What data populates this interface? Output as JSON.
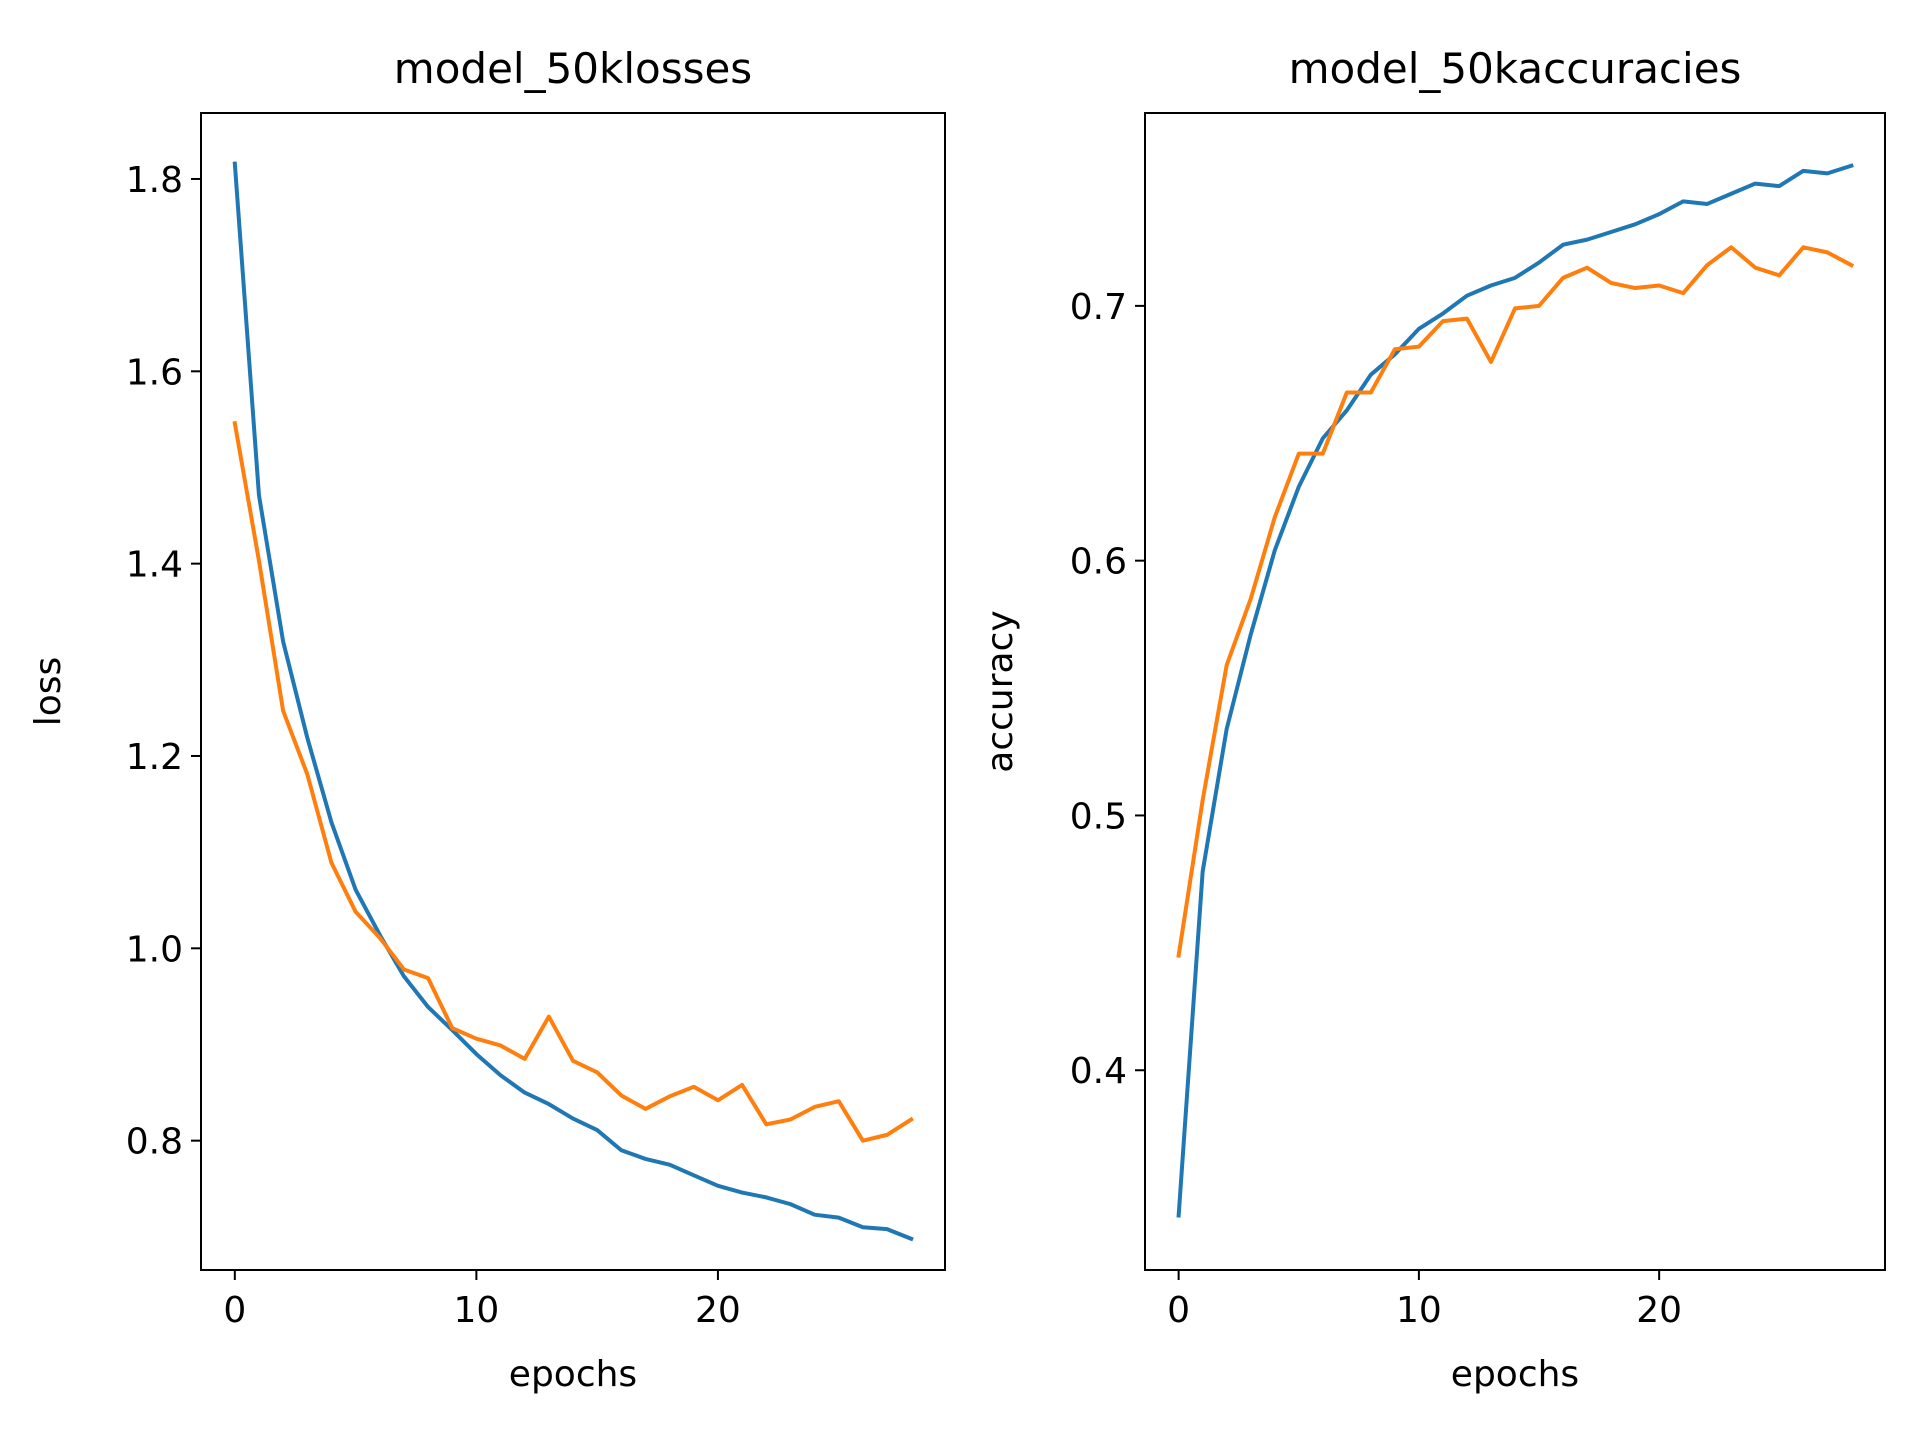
{
  "chart_data": [
    {
      "type": "line",
      "title": "model_50klosses",
      "xlabel": "epochs",
      "ylabel": "loss",
      "xlim": [
        -1.4,
        29.4
      ],
      "ylim": [
        0.6655,
        1.8686
      ],
      "xticks": [
        0,
        10,
        20
      ],
      "xtick_labels": [
        "0",
        "10",
        "20"
      ],
      "yticks": [
        0.8,
        1.0,
        1.2,
        1.4,
        1.6,
        1.8
      ],
      "ytick_labels": [
        "0.8",
        "1.0",
        "1.2",
        "1.4",
        "1.6",
        "1.8"
      ],
      "grid": false,
      "legend": null,
      "x": [
        0,
        1,
        2,
        3,
        4,
        5,
        6,
        7,
        8,
        9,
        10,
        11,
        12,
        13,
        14,
        15,
        16,
        17,
        18,
        19,
        20,
        21,
        22,
        23,
        24,
        25,
        26,
        27,
        28
      ],
      "series": [
        {
          "color": "#1f77b4",
          "values": [
            1.816,
            1.471,
            1.319,
            1.219,
            1.131,
            1.061,
            1.014,
            0.971,
            0.939,
            0.915,
            0.89,
            0.868,
            0.85,
            0.838,
            0.823,
            0.811,
            0.79,
            0.781,
            0.775,
            0.764,
            0.753,
            0.746,
            0.741,
            0.734,
            0.723,
            0.72,
            0.71,
            0.708,
            0.698
          ]
        },
        {
          "color": "#ff7f0e",
          "values": [
            1.546,
            1.403,
            1.247,
            1.181,
            1.089,
            1.038,
            1.011,
            0.978,
            0.969,
            0.917,
            0.906,
            0.899,
            0.885,
            0.929,
            0.883,
            0.871,
            0.847,
            0.833,
            0.846,
            0.856,
            0.842,
            0.858,
            0.817,
            0.822,
            0.835,
            0.841,
            0.8,
            0.806,
            0.822
          ]
        }
      ]
    },
    {
      "type": "line",
      "title": "model_50kaccuracies",
      "xlabel": "epochs",
      "ylabel": "accuracy",
      "xlim": [
        -1.4,
        29.4
      ],
      "ylim": [
        0.3216,
        0.7757
      ],
      "xticks": [
        0,
        10,
        20
      ],
      "xtick_labels": [
        "0",
        "10",
        "20"
      ],
      "yticks": [
        0.4,
        0.5,
        0.6,
        0.7
      ],
      "ytick_labels": [
        "0.4",
        "0.5",
        "0.6",
        "0.7"
      ],
      "grid": false,
      "legend": null,
      "x": [
        0,
        1,
        2,
        3,
        4,
        5,
        6,
        7,
        8,
        9,
        10,
        11,
        12,
        13,
        14,
        15,
        16,
        17,
        18,
        19,
        20,
        21,
        22,
        23,
        24,
        25,
        26,
        27,
        28
      ],
      "series": [
        {
          "color": "#1f77b4",
          "values": [
            0.343,
            0.478,
            0.534,
            0.571,
            0.604,
            0.629,
            0.648,
            0.659,
            0.673,
            0.681,
            0.691,
            0.697,
            0.704,
            0.708,
            0.711,
            0.717,
            0.724,
            0.726,
            0.729,
            0.732,
            0.736,
            0.741,
            0.74,
            0.744,
            0.748,
            0.747,
            0.753,
            0.752,
            0.755
          ]
        },
        {
          "color": "#ff7f0e",
          "values": [
            0.445,
            0.506,
            0.559,
            0.585,
            0.617,
            0.642,
            0.642,
            0.666,
            0.666,
            0.683,
            0.684,
            0.694,
            0.695,
            0.678,
            0.699,
            0.7,
            0.711,
            0.715,
            0.709,
            0.707,
            0.708,
            0.705,
            0.716,
            0.723,
            0.715,
            0.712,
            0.723,
            0.721,
            0.716
          ]
        }
      ]
    }
  ]
}
